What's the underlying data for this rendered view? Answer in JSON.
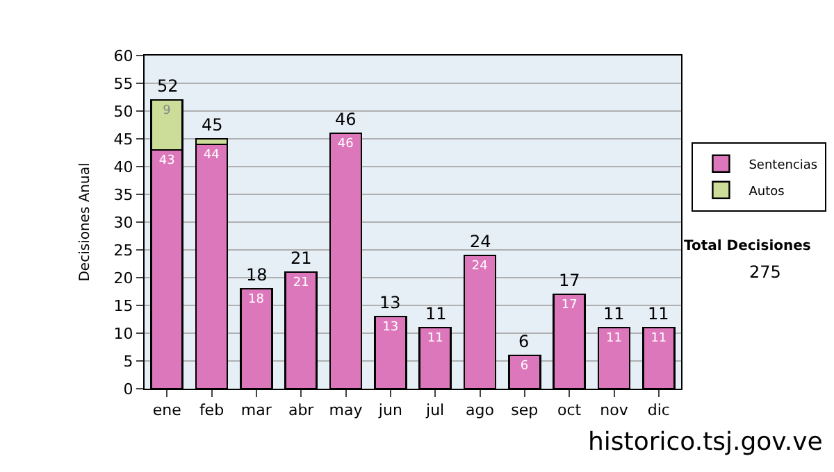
{
  "chart_data": {
    "type": "bar",
    "stacked": true,
    "ylabel": "Decisiones Anual",
    "categories": [
      "ene",
      "feb",
      "mar",
      "abr",
      "may",
      "jun",
      "jul",
      "ago",
      "sep",
      "oct",
      "nov",
      "dic"
    ],
    "series": [
      {
        "name": "Sentencias",
        "color": "#dd77bb",
        "values": [
          43,
          44,
          18,
          21,
          46,
          13,
          11,
          24,
          6,
          17,
          11,
          11
        ],
        "value_labels": [
          "43",
          "44",
          "18",
          "21",
          "46",
          "13",
          "11",
          "24",
          "6",
          "17",
          "11",
          "11"
        ]
      },
      {
        "name": "Autos",
        "color": "#ccdd99",
        "values": [
          9,
          1,
          0,
          0,
          0,
          0,
          0,
          0,
          0,
          0,
          0,
          0
        ],
        "value_labels": [
          "9",
          null,
          null,
          null,
          null,
          null,
          null,
          null,
          null,
          null,
          null,
          null
        ]
      }
    ],
    "totals": [
      "52",
      "45",
      "18",
      "21",
      "46",
      "13",
      "11",
      "24",
      "6",
      "17",
      "11",
      "11"
    ],
    "ylim": [
      0,
      60
    ],
    "yticks": [
      0,
      5,
      10,
      15,
      20,
      25,
      30,
      35,
      40,
      45,
      50,
      55,
      60
    ],
    "grid": "y",
    "legend": "right",
    "annotations": [
      "Total Decisiones",
      "275",
      "historico.tsj.gov.ve"
    ]
  }
}
